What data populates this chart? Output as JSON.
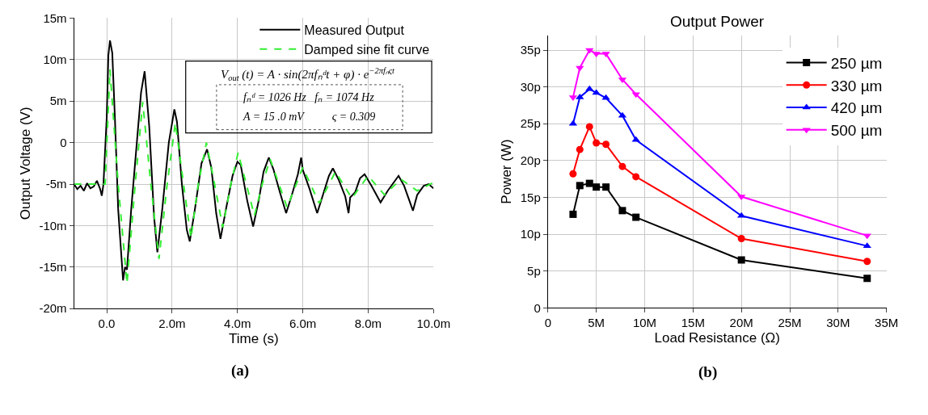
{
  "chart_data": [
    {
      "type": "line",
      "xlabel": "Time (s)",
      "ylabel": "Output Voltage (V)",
      "xlim": [
        -1,
        10
      ],
      "xticks": [
        {
          "value": 0,
          "label": "0.0"
        },
        {
          "value": 2,
          "label": "2.0m"
        },
        {
          "value": 4,
          "label": "4.0m"
        },
        {
          "value": 6,
          "label": "6.0m"
        },
        {
          "value": 8,
          "label": "8.0m"
        },
        {
          "value": 10,
          "label": "10.0m"
        }
      ],
      "ylim": [
        -20,
        15
      ],
      "yticks": [
        {
          "value": -20,
          "label": "-20m"
        },
        {
          "value": -15,
          "label": "-15m"
        },
        {
          "value": -10,
          "label": "-10m"
        },
        {
          "value": -5,
          "label": "-5m"
        },
        0,
        {
          "value": 5,
          "label": "5m"
        },
        {
          "value": 10,
          "label": "10m"
        },
        {
          "value": 15,
          "label": "15m"
        }
      ],
      "grid": true,
      "legend": "top right",
      "annotations": [
        "V$_{out}$ (t) = A · sin(2πfₙᵈt + φ) · e$^{−2πfₙςt}$",
        "fₙᵈ = 1026 Hz   fₙ = 1074 Hz",
        "A = 15 .0 mV          ς = 0.309",
        "(a)"
      ],
      "series": [
        {
          "name": "Measured Output",
          "color": "#000000",
          "line_style": "solid",
          "x": [
            -1.0,
            -0.9,
            -0.8,
            -0.7,
            -0.6,
            -0.5,
            -0.4,
            -0.3,
            -0.2,
            -0.15,
            -0.1,
            0.0,
            0.05,
            0.1,
            0.17,
            0.25,
            0.35,
            0.5,
            0.56,
            0.62,
            0.75,
            0.9,
            1.05,
            1.16,
            1.3,
            1.45,
            1.55,
            1.7,
            1.9,
            2.07,
            2.15,
            2.3,
            2.45,
            2.54,
            2.7,
            2.9,
            3.07,
            3.2,
            3.35,
            3.48,
            3.65,
            3.85,
            4.0,
            4.1,
            4.3,
            4.48,
            4.65,
            4.8,
            4.96,
            5.1,
            5.3,
            5.49,
            5.65,
            5.85,
            5.95,
            6.0,
            6.2,
            6.44,
            6.6,
            6.8,
            6.92,
            7.1,
            7.3,
            7.4,
            7.45,
            7.6,
            7.75,
            7.89,
            8.1,
            8.38,
            8.6,
            8.93,
            9.1,
            9.37,
            9.5,
            9.7,
            9.85,
            10.0
          ],
          "values": [
            -5.0,
            -5.6,
            -5.2,
            -5.8,
            -4.9,
            -5.5,
            -5.3,
            -4.6,
            -5.6,
            -6.4,
            -5.0,
            3.0,
            10.5,
            12.3,
            10.8,
            3.0,
            -8.0,
            -16.6,
            -15.0,
            -15.3,
            -8.0,
            -1.0,
            6.0,
            8.6,
            2.0,
            -9.0,
            -13.2,
            -8.0,
            0.0,
            4.0,
            2.5,
            -5.0,
            -10.5,
            -11.9,
            -8.0,
            -2.5,
            -0.8,
            -3.0,
            -8.5,
            -11.6,
            -8.0,
            -4.0,
            -2.3,
            -2.7,
            -7.0,
            -10.1,
            -7.0,
            -3.5,
            -1.8,
            -3.2,
            -6.0,
            -8.5,
            -6.5,
            -3.8,
            -1.8,
            -3.3,
            -5.5,
            -8.5,
            -6.5,
            -4.0,
            -3.1,
            -4.5,
            -6.5,
            -8.5,
            -6.6,
            -6.0,
            -4.3,
            -3.8,
            -5.2,
            -7.2,
            -5.8,
            -4.0,
            -5.2,
            -8.2,
            -6.3,
            -5.2,
            -5.0,
            -5.5
          ]
        },
        {
          "name": "Damped sine fit curve",
          "color": "#33ee33",
          "line_style": "dashed",
          "x": [
            -1.0,
            -0.05,
            0.1,
            0.35,
            0.62,
            0.85,
            1.1,
            1.35,
            1.6,
            1.85,
            2.1,
            2.35,
            2.58,
            2.8,
            3.05,
            3.3,
            3.55,
            3.8,
            4.02,
            4.27,
            4.52,
            4.76,
            5.0,
            5.52,
            6.0,
            6.5,
            7.0,
            7.5,
            8.0,
            8.5,
            9.0,
            9.5,
            10.0
          ],
          "values": [
            -5.0,
            -5.0,
            8.8,
            -5.0,
            -17.0,
            -6.0,
            4.9,
            -5.0,
            -14.0,
            -5.0,
            2.4,
            -5.0,
            -11.5,
            -5.0,
            0.0,
            -5.0,
            -10.2,
            -5.0,
            -1.2,
            -5.0,
            -8.8,
            -5.0,
            -2.0,
            -7.8,
            -3.0,
            -7.3,
            -3.5,
            -6.7,
            -4.0,
            -6.3,
            -4.4,
            -5.8,
            -4.8
          ]
        }
      ]
    },
    {
      "type": "line",
      "title": "Output Power",
      "xlabel": "Load Resistance (Ω)",
      "ylabel": "Power (W)",
      "x": [
        2.6,
        3.3,
        4.3,
        5.0,
        6.0,
        7.7,
        9.1,
        20,
        33
      ],
      "xlim": [
        0,
        35
      ],
      "xticks": [
        0,
        {
          "value": 5,
          "label": "5M"
        },
        {
          "value": 10,
          "label": "10M"
        },
        {
          "value": 15,
          "label": "15M"
        },
        {
          "value": 20,
          "label": "20M"
        },
        {
          "value": 25,
          "label": "25M"
        },
        {
          "value": 30,
          "label": "30M"
        },
        {
          "value": 35,
          "label": "35M"
        }
      ],
      "ylim": [
        0,
        37
      ],
      "yticks": [
        0,
        {
          "value": 5,
          "label": "5p"
        },
        {
          "value": 10,
          "label": "10p"
        },
        {
          "value": 15,
          "label": "15p"
        },
        {
          "value": 20,
          "label": "20p"
        },
        {
          "value": 25,
          "label": "25p"
        },
        {
          "value": 30,
          "label": "30p"
        },
        {
          "value": 35,
          "label": "35p"
        }
      ],
      "grid": true,
      "legend": "top right",
      "annotations": [
        "(b)"
      ],
      "series": [
        {
          "name": "250 µm",
          "color": "#000000",
          "marker": "square",
          "values": [
            12.7,
            16.6,
            16.9,
            16.4,
            16.4,
            13.2,
            12.3,
            6.5,
            4.0
          ]
        },
        {
          "name": "330 µm",
          "color": "#ff0000",
          "marker": "circle",
          "values": [
            18.2,
            21.5,
            24.6,
            22.4,
            22.2,
            19.2,
            17.8,
            9.4,
            6.3
          ]
        },
        {
          "name": "420 µm",
          "color": "#0000ff",
          "marker": "triangle",
          "values": [
            25.0,
            28.6,
            29.7,
            29.2,
            28.5,
            26.1,
            22.8,
            12.5,
            8.4
          ]
        },
        {
          "name": "500 µm",
          "color": "#ff00ff",
          "marker": "triangle-down",
          "values": [
            28.6,
            32.6,
            35.0,
            34.5,
            34.5,
            31.0,
            29.0,
            15.1,
            9.8
          ]
        }
      ]
    }
  ]
}
